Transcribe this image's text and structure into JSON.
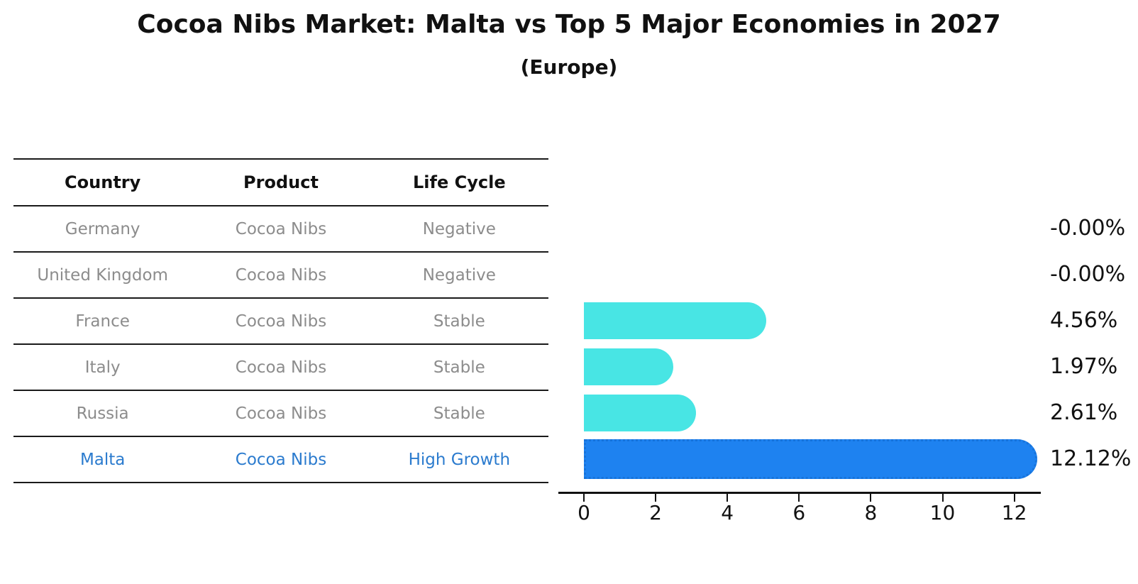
{
  "header": {
    "title": "Cocoa Nibs Market: Malta vs Top 5 Major Economies in 2027",
    "subtitle": "(Europe)"
  },
  "table": {
    "columns": [
      "Country",
      "Product",
      "Life Cycle"
    ],
    "rows": [
      {
        "country": "Germany",
        "product": "Cocoa Nibs",
        "life_cycle": "Negative",
        "highlight": false
      },
      {
        "country": "United Kingdom",
        "product": "Cocoa Nibs",
        "life_cycle": "Negative",
        "highlight": false
      },
      {
        "country": "France",
        "product": "Cocoa Nibs",
        "life_cycle": "Stable",
        "highlight": false
      },
      {
        "country": "Italy",
        "product": "Cocoa Nibs",
        "life_cycle": "Stable",
        "highlight": false
      },
      {
        "country": "Russia",
        "product": "Cocoa Nibs",
        "life_cycle": "Stable",
        "highlight": false
      },
      {
        "country": "Malta",
        "product": "Cocoa Nibs",
        "life_cycle": "High Growth",
        "highlight": true
      }
    ]
  },
  "chart_data": {
    "type": "bar",
    "orientation": "horizontal",
    "title": "Cocoa Nibs Market: Malta vs Top 5 Major Economies in 2027",
    "subtitle": "(Europe)",
    "categories": [
      "Germany",
      "United Kingdom",
      "France",
      "Italy",
      "Russia",
      "Malta"
    ],
    "values": [
      -0.0,
      -0.0,
      4.56,
      1.97,
      2.61,
      12.12
    ],
    "value_labels": [
      "-0.00%",
      "-0.00%",
      "4.56%",
      "1.97%",
      "2.61%",
      "12.12%"
    ],
    "unit": "percent CAGR",
    "xlim": [
      0,
      13
    ],
    "x_ticks": [
      0,
      2,
      4,
      6,
      8,
      10,
      12
    ],
    "highlight_category": "Malta",
    "grid": false,
    "legend": false
  },
  "colors": {
    "bar_default": "#48e5e4",
    "bar_highlight": "#1e82f0",
    "highlight_text": "#2b7bce",
    "muted_text": "#8c8c8c",
    "axis": "#111111"
  }
}
